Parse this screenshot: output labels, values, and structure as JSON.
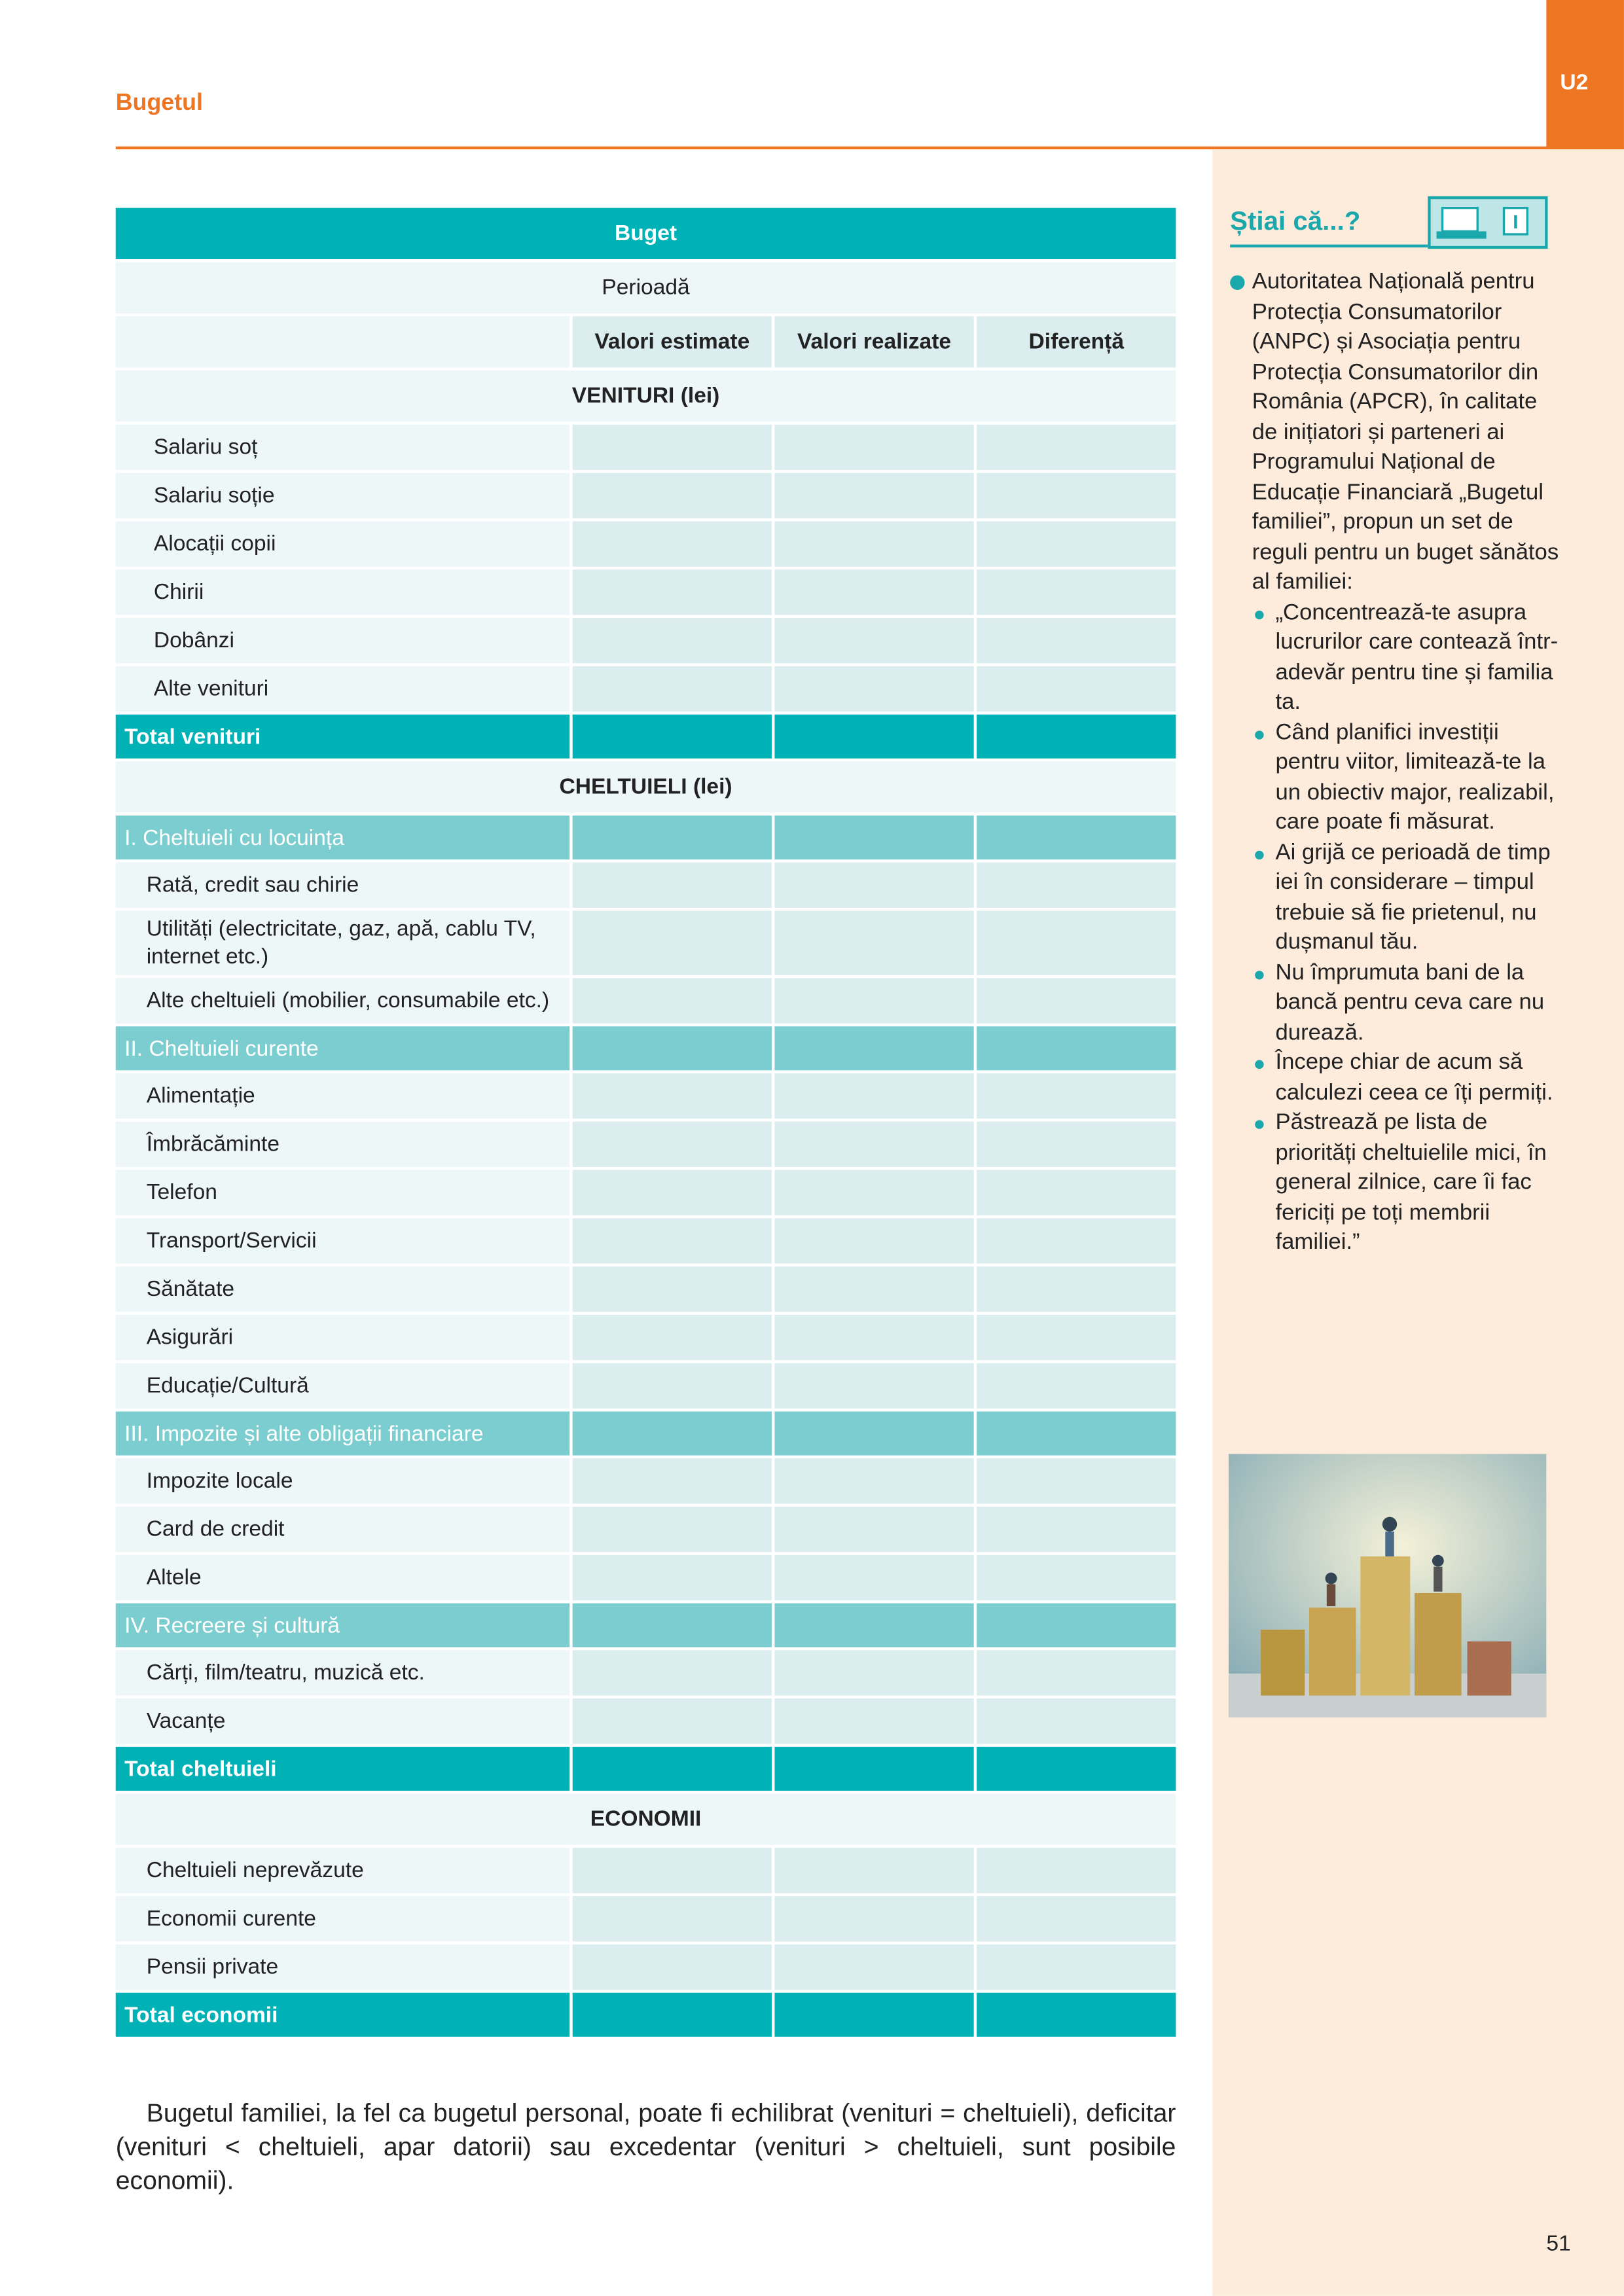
{
  "header": {
    "section": "Bugetul",
    "unit": "U2"
  },
  "table": {
    "title": "Buget",
    "period": "Perioadă",
    "columns": [
      "Valori estimate",
      "Valori realizate",
      "Diferență"
    ],
    "sections": [
      {
        "heading": "VENITURI (lei)",
        "rows": [
          "Salariu soț",
          "Salariu soție",
          "Alocații copii",
          "Chirii",
          "Dobânzi",
          "Alte venituri"
        ],
        "total": "Total venituri"
      },
      {
        "heading": "CHELTUIELI (lei)",
        "groups": [
          {
            "title": "I. Cheltuieli cu locuința",
            "rows": [
              "Rată, credit sau chirie",
              "Utilități (electricitate, gaz, apă, cablu TV, internet etc.)",
              "Alte cheltuieli (mobilier, consumabile etc.)"
            ]
          },
          {
            "title": "II. Cheltuieli curente",
            "rows": [
              "Alimentație",
              "Îmbrăcăminte",
              "Telefon",
              "Transport/Servicii",
              "Sănătate",
              "Asigurări",
              "Educație/Cultură"
            ]
          },
          {
            "title": "III. Impozite și alte obligații financiare",
            "rows": [
              "Impozite locale",
              "Card de credit",
              "Altele"
            ]
          },
          {
            "title": "IV. Recreere și cultură",
            "rows": [
              "Cărți, film/teatru, muzică etc.",
              "Vacanțe"
            ]
          }
        ],
        "total": "Total cheltuieli"
      },
      {
        "heading": "ECONOMII",
        "rows": [
          "Cheltuieli neprevăzute",
          "Economii curente",
          "Pensii private"
        ],
        "total": "Total economii"
      }
    ]
  },
  "sidebar": {
    "title": "Știai că...?",
    "intro": "Autoritatea Națională pentru Protecția Consumatorilor (ANPC) și Asociația pentru Protecția Consumatorilor din România (APCR), în calitate de inițiatori și parteneri ai Programului Național de Educație Financiară „Bugetul familiei”, propun un set de reguli pentru un buget sănătos al familiei:",
    "bullets": [
      "„Concentrează-te asupra lucrurilor care contează într-adevăr pentru tine și familia ta.",
      "Când planifici investiții pentru viitor, limitează-te la un obiectiv major, realizabil, care poate fi măsurat.",
      "Ai grijă ce perioadă de timp iei în considerare – timpul trebuie să fie prietenul, nu dușmanul tău.",
      "Nu împrumuta bani de la bancă pentru ceva care nu durează.",
      "Începe chiar de acum să calculezi ceea ce îți permiți.",
      "Păstrează pe lista de priorități cheltuielile mici, în general zilnice, care îi fac fericiți pe toți membrii familiei.”"
    ]
  },
  "footer": {
    "text": "Bugetul familiei, la fel ca bugetul personal, poate fi echilibrat (venituri = cheltuieli), deficitar (venituri < cheltuieli, apar datorii) sau excedentar (venituri > cheltuieli, sunt posibile economii).",
    "page": "51"
  }
}
